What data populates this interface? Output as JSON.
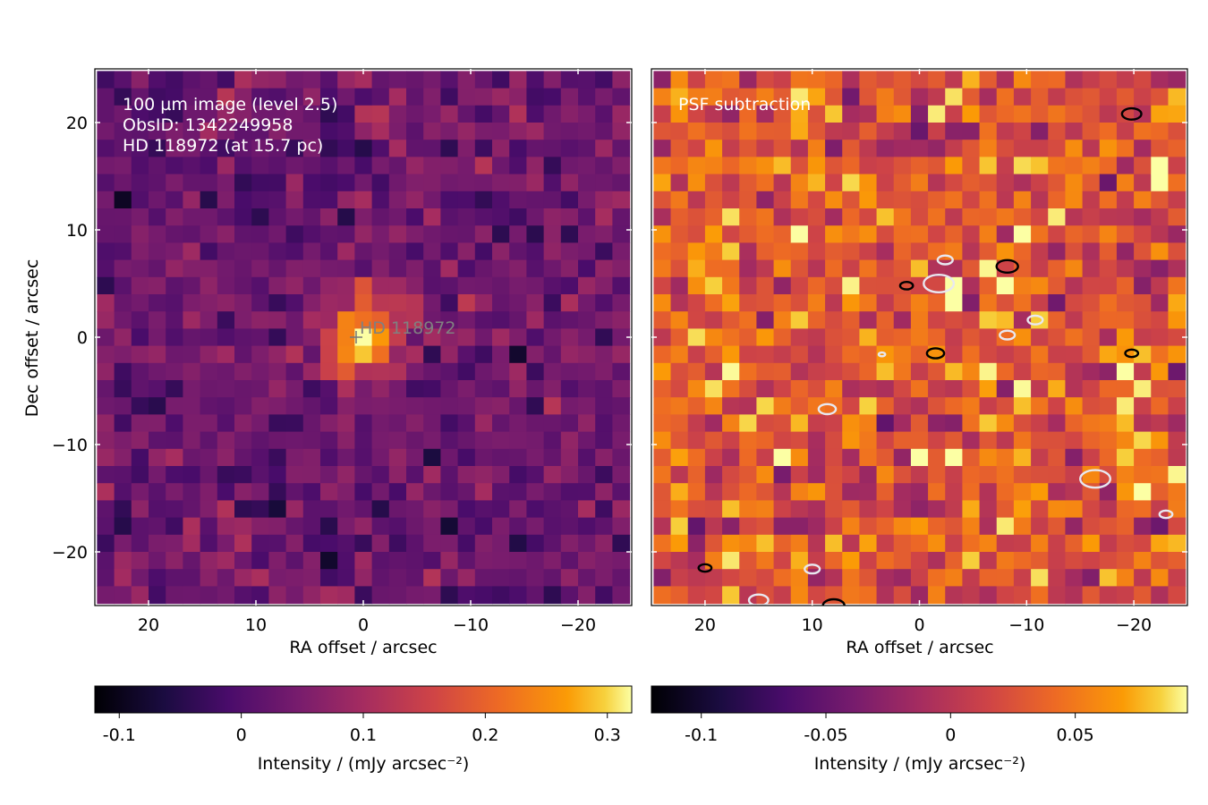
{
  "chart_data": [
    {
      "type": "heatmap",
      "panel": "left",
      "annotation_lines": [
        "100 µm image (level 2.5)",
        "ObsID: 1342249958",
        "HD 118972 (at 15.7 pc)"
      ],
      "star_label": "HD 118972",
      "star_position": [
        0,
        0
      ],
      "xlabel": "RA offset / arcsec",
      "ylabel": "Dec offset / arcsec",
      "xlim": [
        25,
        -25
      ],
      "ylim": [
        -25,
        25
      ],
      "xticks": [
        20,
        10,
        0,
        -10,
        -20
      ],
      "xtick_labels": [
        "20",
        "10",
        "0",
        "−10",
        "−20"
      ],
      "yticks": [
        20,
        10,
        0,
        -10,
        -20
      ],
      "ytick_labels": [
        "20",
        "10",
        "0",
        "−10",
        "−20"
      ],
      "pixel_size_arcsec": 1.6,
      "grid_size": [
        31,
        31
      ],
      "colormap": "inferno",
      "background_level": 0.03,
      "peak": {
        "x": 0,
        "y": 0,
        "value": 0.3
      },
      "colorbar": {
        "range": [
          -0.12,
          0.32
        ],
        "ticks": [
          -0.1,
          0,
          0.1,
          0.2,
          0.3
        ],
        "tick_labels": [
          "-0.1",
          "0",
          "0.1",
          "0.2",
          "0.3"
        ],
        "label": "Intensity / (mJy arcsec⁻²)"
      }
    },
    {
      "type": "heatmap",
      "panel": "right",
      "annotation_lines": [
        "PSF subtraction"
      ],
      "xlabel": "RA offset / arcsec",
      "xlim": [
        25,
        -25
      ],
      "ylim": [
        -25,
        25
      ],
      "xticks": [
        20,
        10,
        0,
        -10,
        -20
      ],
      "xtick_labels": [
        "20",
        "10",
        "0",
        "−10",
        "−20"
      ],
      "pixel_size_arcsec": 1.6,
      "grid_size": [
        31,
        31
      ],
      "colormap": "inferno",
      "noise_level": 0.03,
      "contours": "black at -3 sigma, white at +3 sigma",
      "colorbar": {
        "range": [
          -0.12,
          0.095
        ],
        "ticks": [
          -0.1,
          -0.05,
          0,
          0.05
        ],
        "tick_labels": [
          "-0.1",
          "-0.05",
          "0",
          "0.05"
        ],
        "label": "Intensity / (mJy arcsec⁻²)"
      }
    }
  ]
}
